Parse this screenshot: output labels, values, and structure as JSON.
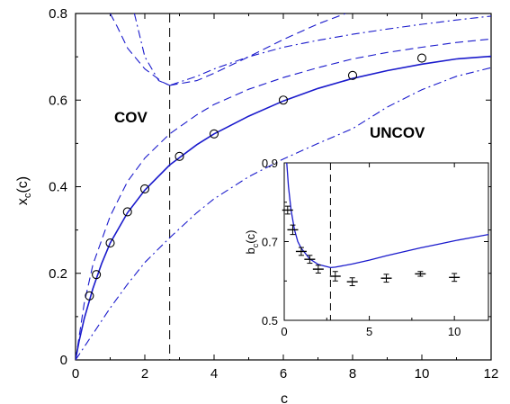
{
  "chart_data": [
    {
      "type": "line",
      "xlabel": "c",
      "ylabel_main": "x",
      "ylabel_sub": "c",
      "ylabel_tail": "(c)",
      "xlim": [
        0,
        12
      ],
      "ylim": [
        0,
        0.8
      ],
      "xticks": [
        "0",
        "2",
        "4",
        "6",
        "8",
        "10",
        "12"
      ],
      "yticks": [
        "0",
        "0.2",
        "0.4",
        "0.6",
        "0.8"
      ],
      "annotations": [
        "COV",
        "UNCOV"
      ],
      "vline_x": 2.718,
      "series": [
        {
          "style": "solid",
          "color": "#1a1acc",
          "x": [
            0,
            0.1,
            0.25,
            0.5,
            0.75,
            1.0,
            1.5,
            2.0,
            2.718,
            3.5,
            4.0,
            5.0,
            6.0,
            7.0,
            8.0,
            9.0,
            10.0,
            11.0,
            12.0
          ],
          "y": [
            0,
            0.042,
            0.095,
            0.165,
            0.222,
            0.27,
            0.34,
            0.392,
            0.45,
            0.497,
            0.522,
            0.563,
            0.598,
            0.627,
            0.65,
            0.668,
            0.683,
            0.695,
            0.701
          ]
        },
        {
          "style": "dash",
          "color": "#1a1acc",
          "x": [
            0,
            0.25,
            0.5,
            1.0,
            1.5,
            2.0,
            2.718,
            3.5,
            4.0,
            5.0,
            6.0,
            7.0,
            8.0,
            9.0,
            10.0,
            11.0,
            12.0
          ],
          "y": [
            0,
            0.13,
            0.22,
            0.332,
            0.412,
            0.466,
            0.522,
            0.566,
            0.59,
            0.625,
            0.652,
            0.675,
            0.695,
            0.71,
            0.722,
            0.733,
            0.741
          ]
        },
        {
          "style": "dashdot",
          "color": "#1a1acc",
          "x": [
            0,
            0.5,
            1.0,
            1.5,
            2.0,
            2.718,
            3.5,
            4.0,
            5.0,
            6.0,
            7.0,
            8.0,
            9.0,
            10.0,
            11.0,
            12.0
          ],
          "y": [
            0,
            0.06,
            0.12,
            0.175,
            0.225,
            0.282,
            0.34,
            0.372,
            0.423,
            0.464,
            0.5,
            0.534,
            0.584,
            0.624,
            0.655,
            0.675
          ]
        },
        {
          "style": "dash",
          "color": "#1a1acc",
          "x": [
            1.0,
            1.2,
            1.5,
            2.0,
            2.5,
            2.718
          ],
          "y": [
            0.8,
            0.77,
            0.72,
            0.672,
            0.642,
            0.634
          ]
        },
        {
          "style": "dash",
          "color": "#1a1acc",
          "x": [
            2.718,
            3.5,
            4.0,
            5.0,
            6.0,
            7.0,
            7.8
          ],
          "y": [
            0.634,
            0.645,
            0.662,
            0.7,
            0.74,
            0.776,
            0.8
          ]
        },
        {
          "style": "dashdot",
          "color": "#1a1acc",
          "x": [
            1.7,
            2.0,
            2.4,
            2.718,
            3.5,
            4.0,
            5.0,
            6.0,
            7.0,
            8.0,
            9.0,
            10.0,
            11.0,
            12.0
          ],
          "y": [
            0.8,
            0.7,
            0.645,
            0.634,
            0.655,
            0.672,
            0.7,
            0.722,
            0.738,
            0.752,
            0.764,
            0.775,
            0.785,
            0.794
          ]
        }
      ],
      "markers": {
        "shape": "circle",
        "x": [
          0.4,
          0.6,
          1.0,
          1.5,
          2.0,
          3.0,
          4.0,
          6.0,
          8.0,
          10.0
        ],
        "y": [
          0.148,
          0.197,
          0.27,
          0.342,
          0.395,
          0.47,
          0.522,
          0.6,
          0.657,
          0.697
        ]
      }
    },
    {
      "type": "line",
      "inset": true,
      "xlabel": "",
      "ylabel_main": "b",
      "ylabel_sub": "c",
      "ylabel_tail": "(c)",
      "xlim": [
        0,
        12
      ],
      "ylim": [
        0.5,
        0.9
      ],
      "xticks": [
        "0",
        "5",
        "10"
      ],
      "yticks": [
        "0.5",
        "0.7",
        "0.9"
      ],
      "vline_x": 2.718,
      "curve": {
        "x": [
          0.15,
          0.25,
          0.4,
          0.6,
          0.8,
          1.0,
          1.5,
          2.0,
          2.718,
          3.0,
          4.0,
          5.0,
          6.0,
          7.0,
          8.0,
          9.0,
          10.0,
          11.0,
          12.0
        ],
        "y": [
          0.9,
          0.84,
          0.78,
          0.73,
          0.7,
          0.683,
          0.656,
          0.642,
          0.634,
          0.635,
          0.643,
          0.653,
          0.664,
          0.674,
          0.684,
          0.693,
          0.702,
          0.71,
          0.718
        ]
      },
      "error_points": {
        "x": [
          0.2,
          0.5,
          1.0,
          1.5,
          2.0,
          3.0,
          4.0,
          6.0,
          8.0,
          10.0
        ],
        "y": [
          0.78,
          0.73,
          0.675,
          0.655,
          0.63,
          0.612,
          0.598,
          0.607,
          0.618,
          0.609
        ],
        "err": [
          0.01,
          0.012,
          0.01,
          0.01,
          0.01,
          0.012,
          0.01,
          0.01,
          0.006,
          0.01
        ]
      }
    }
  ]
}
